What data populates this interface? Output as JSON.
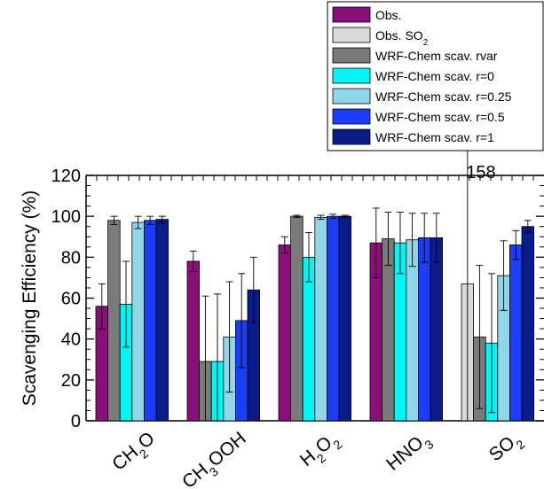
{
  "chart_data": {
    "type": "bar",
    "ylabel": "Scavenging Efficiency (%)",
    "ylim": [
      0,
      120
    ],
    "yticks": [
      "0",
      "20",
      "40",
      "60",
      "80",
      "100",
      "120"
    ],
    "categories": [
      {
        "base": "CH",
        "sub": "2",
        "rest": "O"
      },
      {
        "base": "CH",
        "sub": "3",
        "rest": "OOH"
      },
      {
        "base": "H",
        "sub": "2",
        "rest": "O",
        "sub2": "2"
      },
      {
        "base": "HNO",
        "sub": "3",
        "rest": ""
      },
      {
        "base": "SO",
        "sub": "2",
        "rest": ""
      }
    ],
    "series": [
      {
        "name": "Obs.",
        "color": "#8b0f7a",
        "values": [
          56,
          78,
          86,
          87,
          null
        ],
        "errors": [
          11,
          5,
          4,
          17,
          null
        ]
      },
      {
        "name": "Obs. SO2",
        "color": "#d9d9d9",
        "values": [
          null,
          null,
          null,
          null,
          67
        ],
        "errors": [
          null,
          null,
          null,
          null,
          91
        ]
      },
      {
        "name": "WRF-Chem scav. rvar",
        "color": "#7a7a7a",
        "values": [
          98,
          29,
          100,
          89,
          41
        ],
        "errors": [
          2,
          32,
          0.5,
          13,
          35
        ]
      },
      {
        "name": "WRF-Chem scav. r=0",
        "color": "#00f5f5",
        "values": [
          57,
          29,
          80,
          87,
          38
        ],
        "errors": [
          21,
          33,
          12,
          15,
          34
        ]
      },
      {
        "name": "WRF-Chem scav. r=0.25",
        "color": "#8fd6e8",
        "values": [
          97,
          41,
          99.5,
          88.5,
          71
        ],
        "errors": [
          3,
          27,
          1,
          13,
          17
        ]
      },
      {
        "name": "WRF-Chem scav. r=0.5",
        "color": "#1a3df5",
        "values": [
          98,
          49,
          100,
          89.5,
          86
        ],
        "errors": [
          2,
          23,
          1,
          12,
          7
        ]
      },
      {
        "name": "WRF-Chem scav. r=1",
        "color": "#0a1c8a",
        "values": [
          98.5,
          64,
          100,
          89.5,
          95
        ],
        "errors": [
          1.5,
          16,
          0.5,
          12,
          3
        ]
      }
    ],
    "legend_title_parts": [
      {
        "text": "Obs."
      },
      {
        "text": "Obs. SO",
        "sub": "2"
      },
      {
        "text": "WRF-Chem scav. rvar"
      },
      {
        "text": "WRF-Chem scav. r=0"
      },
      {
        "text": "WRF-Chem scav. r=0.25"
      },
      {
        "text": "WRF-Chem scav. r=0.5"
      },
      {
        "text": "WRF-Chem scav. r=1"
      }
    ],
    "legend_position": "top-right",
    "annotations": [
      {
        "text": "158",
        "x_category": 4,
        "y": 120
      }
    ],
    "grid": false
  }
}
